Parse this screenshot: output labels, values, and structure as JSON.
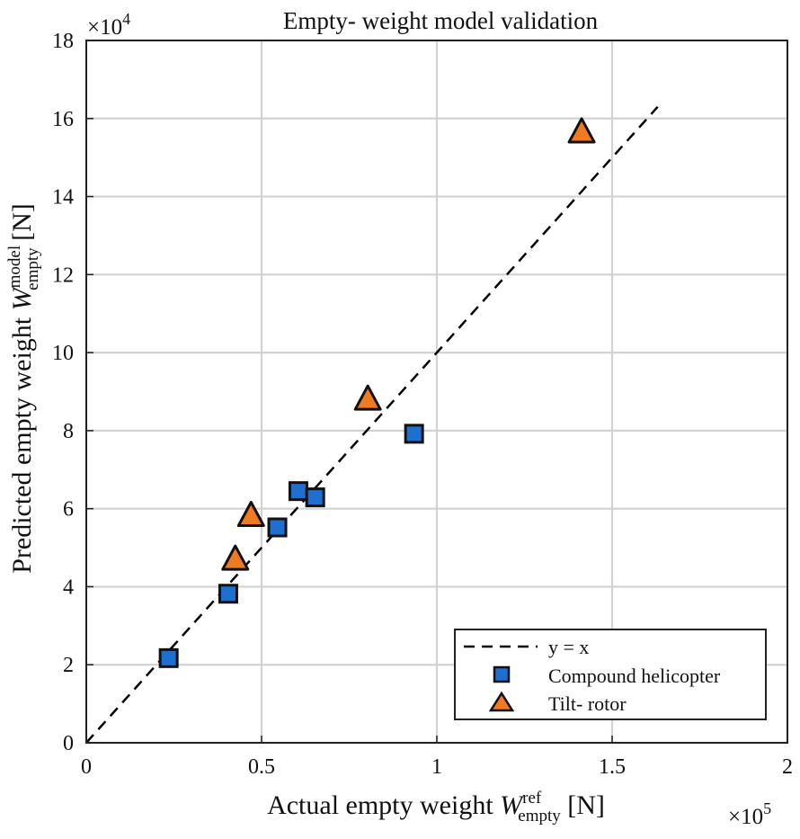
{
  "chart_data": {
    "type": "scatter",
    "title": "Empty-  weight model validation",
    "xlabel": {
      "main": "Actual empty weight ",
      "symbol": "W",
      "sup": "ref",
      "sub": "empty",
      "unit": " [N]"
    },
    "ylabel": {
      "main": "Predicted empty weight ",
      "symbol": "W",
      "sup": "model",
      "sub": "empty",
      "unit": " [N]"
    },
    "x_multiplier": {
      "base": "×10",
      "exp": "5"
    },
    "y_multiplier": {
      "base": "×10",
      "exp": "4"
    },
    "xlim": [
      0,
      2
    ],
    "ylim": [
      0,
      18
    ],
    "xticks": [
      0,
      0.5,
      1,
      1.5,
      2
    ],
    "xtick_labels": [
      "0",
      "0.5",
      "1",
      "1.5",
      "2"
    ],
    "yticks": [
      0,
      2,
      4,
      6,
      8,
      10,
      12,
      14,
      16,
      18
    ],
    "ytick_labels": [
      "0",
      "2",
      "4",
      "6",
      "8",
      "10",
      "12",
      "14",
      "16",
      "18"
    ],
    "grid": true,
    "legend_position": "bottom-right",
    "reference_line": {
      "name": "y = x",
      "x": [
        0,
        1.63
      ],
      "y": [
        0,
        16.3
      ],
      "style": "dashed",
      "color": "#000000"
    },
    "series": [
      {
        "name": "Compound helicopter",
        "marker": "square",
        "color": "#1f6fd1",
        "points": [
          {
            "x": 0.235,
            "y": 2.17
          },
          {
            "x": 0.405,
            "y": 3.82
          },
          {
            "x": 0.545,
            "y": 5.52
          },
          {
            "x": 0.605,
            "y": 6.45
          },
          {
            "x": 0.653,
            "y": 6.29
          },
          {
            "x": 0.935,
            "y": 7.92
          }
        ]
      },
      {
        "name": "Tilt-  rotor",
        "marker": "triangle",
        "color": "#f07a22",
        "points": [
          {
            "x": 0.425,
            "y": 4.7
          },
          {
            "x": 0.47,
            "y": 5.82
          },
          {
            "x": 0.803,
            "y": 8.8
          },
          {
            "x": 1.413,
            "y": 15.65
          }
        ]
      }
    ]
  }
}
